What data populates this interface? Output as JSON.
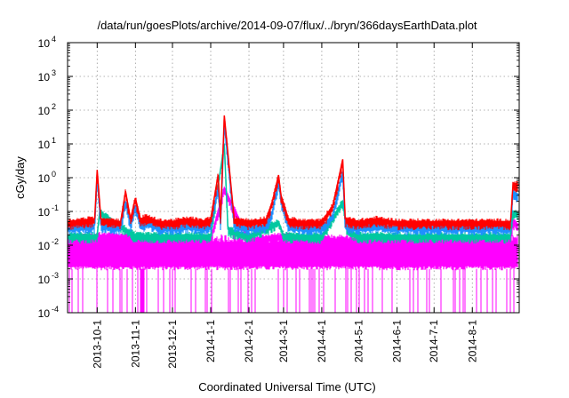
{
  "chart_data": {
    "type": "line",
    "title": "/data/run/goesPlots/archive/2014-09-07/flux/../bryn/366daysEarthData.plot",
    "xlabel": "Coordinated Universal Time (UTC)",
    "ylabel": "cGy/day",
    "yscale": "log",
    "ylim": [
      0.0001,
      10000
    ],
    "xlim": [
      "2013-09-07",
      "2014-09-08"
    ],
    "grid": true,
    "legend": "none",
    "x_ticks": [
      {
        "date": "2013-10-01",
        "label": "2013-10-1"
      },
      {
        "date": "2013-11-01",
        "label": "2013-11-1"
      },
      {
        "date": "2013-12-01",
        "label": "2013-12-1"
      },
      {
        "date": "2014-01-01",
        "label": "2014-1-1"
      },
      {
        "date": "2014-02-01",
        "label": "2014-2-1"
      },
      {
        "date": "2014-03-01",
        "label": "2014-3-1"
      },
      {
        "date": "2014-04-01",
        "label": "2014-4-1"
      },
      {
        "date": "2014-05-01",
        "label": "2014-5-1"
      },
      {
        "date": "2014-06-01",
        "label": "2014-6-1"
      },
      {
        "date": "2014-07-01",
        "label": "2014-7-1"
      },
      {
        "date": "2014-08-01",
        "label": "2014-8-1"
      }
    ],
    "y_ticks": [
      {
        "value": 0.0001,
        "base": "10",
        "exp": "-4"
      },
      {
        "value": 0.001,
        "base": "10",
        "exp": "-3"
      },
      {
        "value": 0.01,
        "base": "10",
        "exp": "-2"
      },
      {
        "value": 0.1,
        "base": "10",
        "exp": "-1"
      },
      {
        "value": 1,
        "base": "10",
        "exp": "0"
      },
      {
        "value": 10,
        "base": "10",
        "exp": "1"
      },
      {
        "value": 100,
        "base": "10",
        "exp": "2"
      },
      {
        "value": 1000,
        "base": "10",
        "exp": "3"
      },
      {
        "value": 10000,
        "base": "10",
        "exp": "4"
      }
    ],
    "series": [
      {
        "color": "#ff0000",
        "x": [
          "2013-09-07",
          "2013-09-29",
          "2013-10-01",
          "2013-10-04",
          "2013-10-20",
          "2013-10-24",
          "2013-10-28",
          "2013-11-01",
          "2013-11-05",
          "2013-11-10",
          "2013-11-20",
          "2013-12-01",
          "2013-12-15",
          "2013-12-25",
          "2014-01-01",
          "2014-01-07",
          "2014-01-09",
          "2014-01-12",
          "2014-01-20",
          "2014-02-01",
          "2014-02-15",
          "2014-02-20",
          "2014-02-25",
          "2014-02-27",
          "2014-03-05",
          "2014-03-15",
          "2014-04-01",
          "2014-04-10",
          "2014-04-18",
          "2014-04-20",
          "2014-05-01",
          "2014-05-15",
          "2014-06-01",
          "2014-06-15",
          "2014-07-01",
          "2014-07-15",
          "2014-08-01",
          "2014-08-15",
          "2014-08-25",
          "2014-09-01",
          "2014-09-03",
          "2014-09-08"
        ],
        "y": [
          0.05,
          0.06,
          1.7,
          0.06,
          0.05,
          0.4,
          0.06,
          0.25,
          0.06,
          0.07,
          0.05,
          0.05,
          0.06,
          0.05,
          0.06,
          1.2,
          0.06,
          70,
          0.06,
          0.05,
          0.06,
          0.2,
          1.2,
          0.3,
          0.06,
          0.05,
          0.05,
          0.15,
          3.5,
          0.06,
          0.05,
          0.06,
          0.05,
          0.05,
          0.05,
          0.05,
          0.05,
          0.05,
          0.05,
          0.05,
          0.7,
          0.6
        ]
      },
      {
        "color": "#1e90ff",
        "x": [
          "2013-09-07",
          "2013-09-29",
          "2013-10-01",
          "2013-10-04",
          "2013-10-20",
          "2013-10-24",
          "2013-10-28",
          "2013-11-01",
          "2013-11-05",
          "2013-11-10",
          "2013-11-20",
          "2013-12-01",
          "2013-12-15",
          "2013-12-25",
          "2014-01-01",
          "2014-01-07",
          "2014-01-09",
          "2014-01-12",
          "2014-01-20",
          "2014-02-01",
          "2014-02-15",
          "2014-02-20",
          "2014-02-25",
          "2014-02-27",
          "2014-03-05",
          "2014-03-15",
          "2014-04-01",
          "2014-04-10",
          "2014-04-18",
          "2014-04-20",
          "2014-05-01",
          "2014-05-15",
          "2014-06-01",
          "2014-06-15",
          "2014-07-01",
          "2014-07-15",
          "2014-08-01",
          "2014-08-15",
          "2014-08-25",
          "2014-09-01",
          "2014-09-03",
          "2014-09-08"
        ],
        "y": [
          0.035,
          0.04,
          1.0,
          0.04,
          0.035,
          0.2,
          0.04,
          0.15,
          0.04,
          0.05,
          0.035,
          0.035,
          0.04,
          0.035,
          0.04,
          0.5,
          0.04,
          40,
          0.04,
          0.035,
          0.04,
          0.1,
          0.8,
          0.2,
          0.04,
          0.035,
          0.035,
          0.08,
          1.5,
          0.04,
          0.035,
          0.04,
          0.035,
          0.035,
          0.035,
          0.035,
          0.035,
          0.035,
          0.035,
          0.035,
          0.4,
          0.3
        ]
      },
      {
        "color": "#00c8a0",
        "x": [
          "2013-09-07",
          "2013-10-01",
          "2013-10-03",
          "2013-11-01",
          "2013-12-01",
          "2014-01-01",
          "2014-01-12",
          "2014-01-15",
          "2014-02-01",
          "2014-02-25",
          "2014-03-01",
          "2014-04-01",
          "2014-04-18",
          "2014-04-21",
          "2014-05-01",
          "2014-06-01",
          "2014-07-01",
          "2014-08-01",
          "2014-09-01",
          "2014-09-03",
          "2014-09-08"
        ],
        "y": [
          0.02,
          0.02,
          0.1,
          0.02,
          0.02,
          0.02,
          10,
          0.03,
          0.02,
          0.05,
          0.02,
          0.02,
          0.2,
          0.03,
          0.02,
          0.02,
          0.02,
          0.02,
          0.02,
          0.1,
          0.08
        ]
      },
      {
        "color": "#ff00ff",
        "x": [
          "2013-09-07",
          "2013-10-01",
          "2013-11-01",
          "2013-12-01",
          "2014-01-01",
          "2014-01-12",
          "2014-02-01",
          "2014-03-01",
          "2014-04-01",
          "2014-05-01",
          "2014-06-01",
          "2014-07-01",
          "2014-08-01",
          "2014-09-01",
          "2014-09-03",
          "2014-09-08"
        ],
        "y": [
          0.015,
          0.02,
          0.018,
          0.015,
          0.015,
          0.5,
          0.015,
          0.02,
          0.015,
          0.015,
          0.015,
          0.015,
          0.015,
          0.015,
          0.05,
          0.04
        ]
      }
    ]
  }
}
